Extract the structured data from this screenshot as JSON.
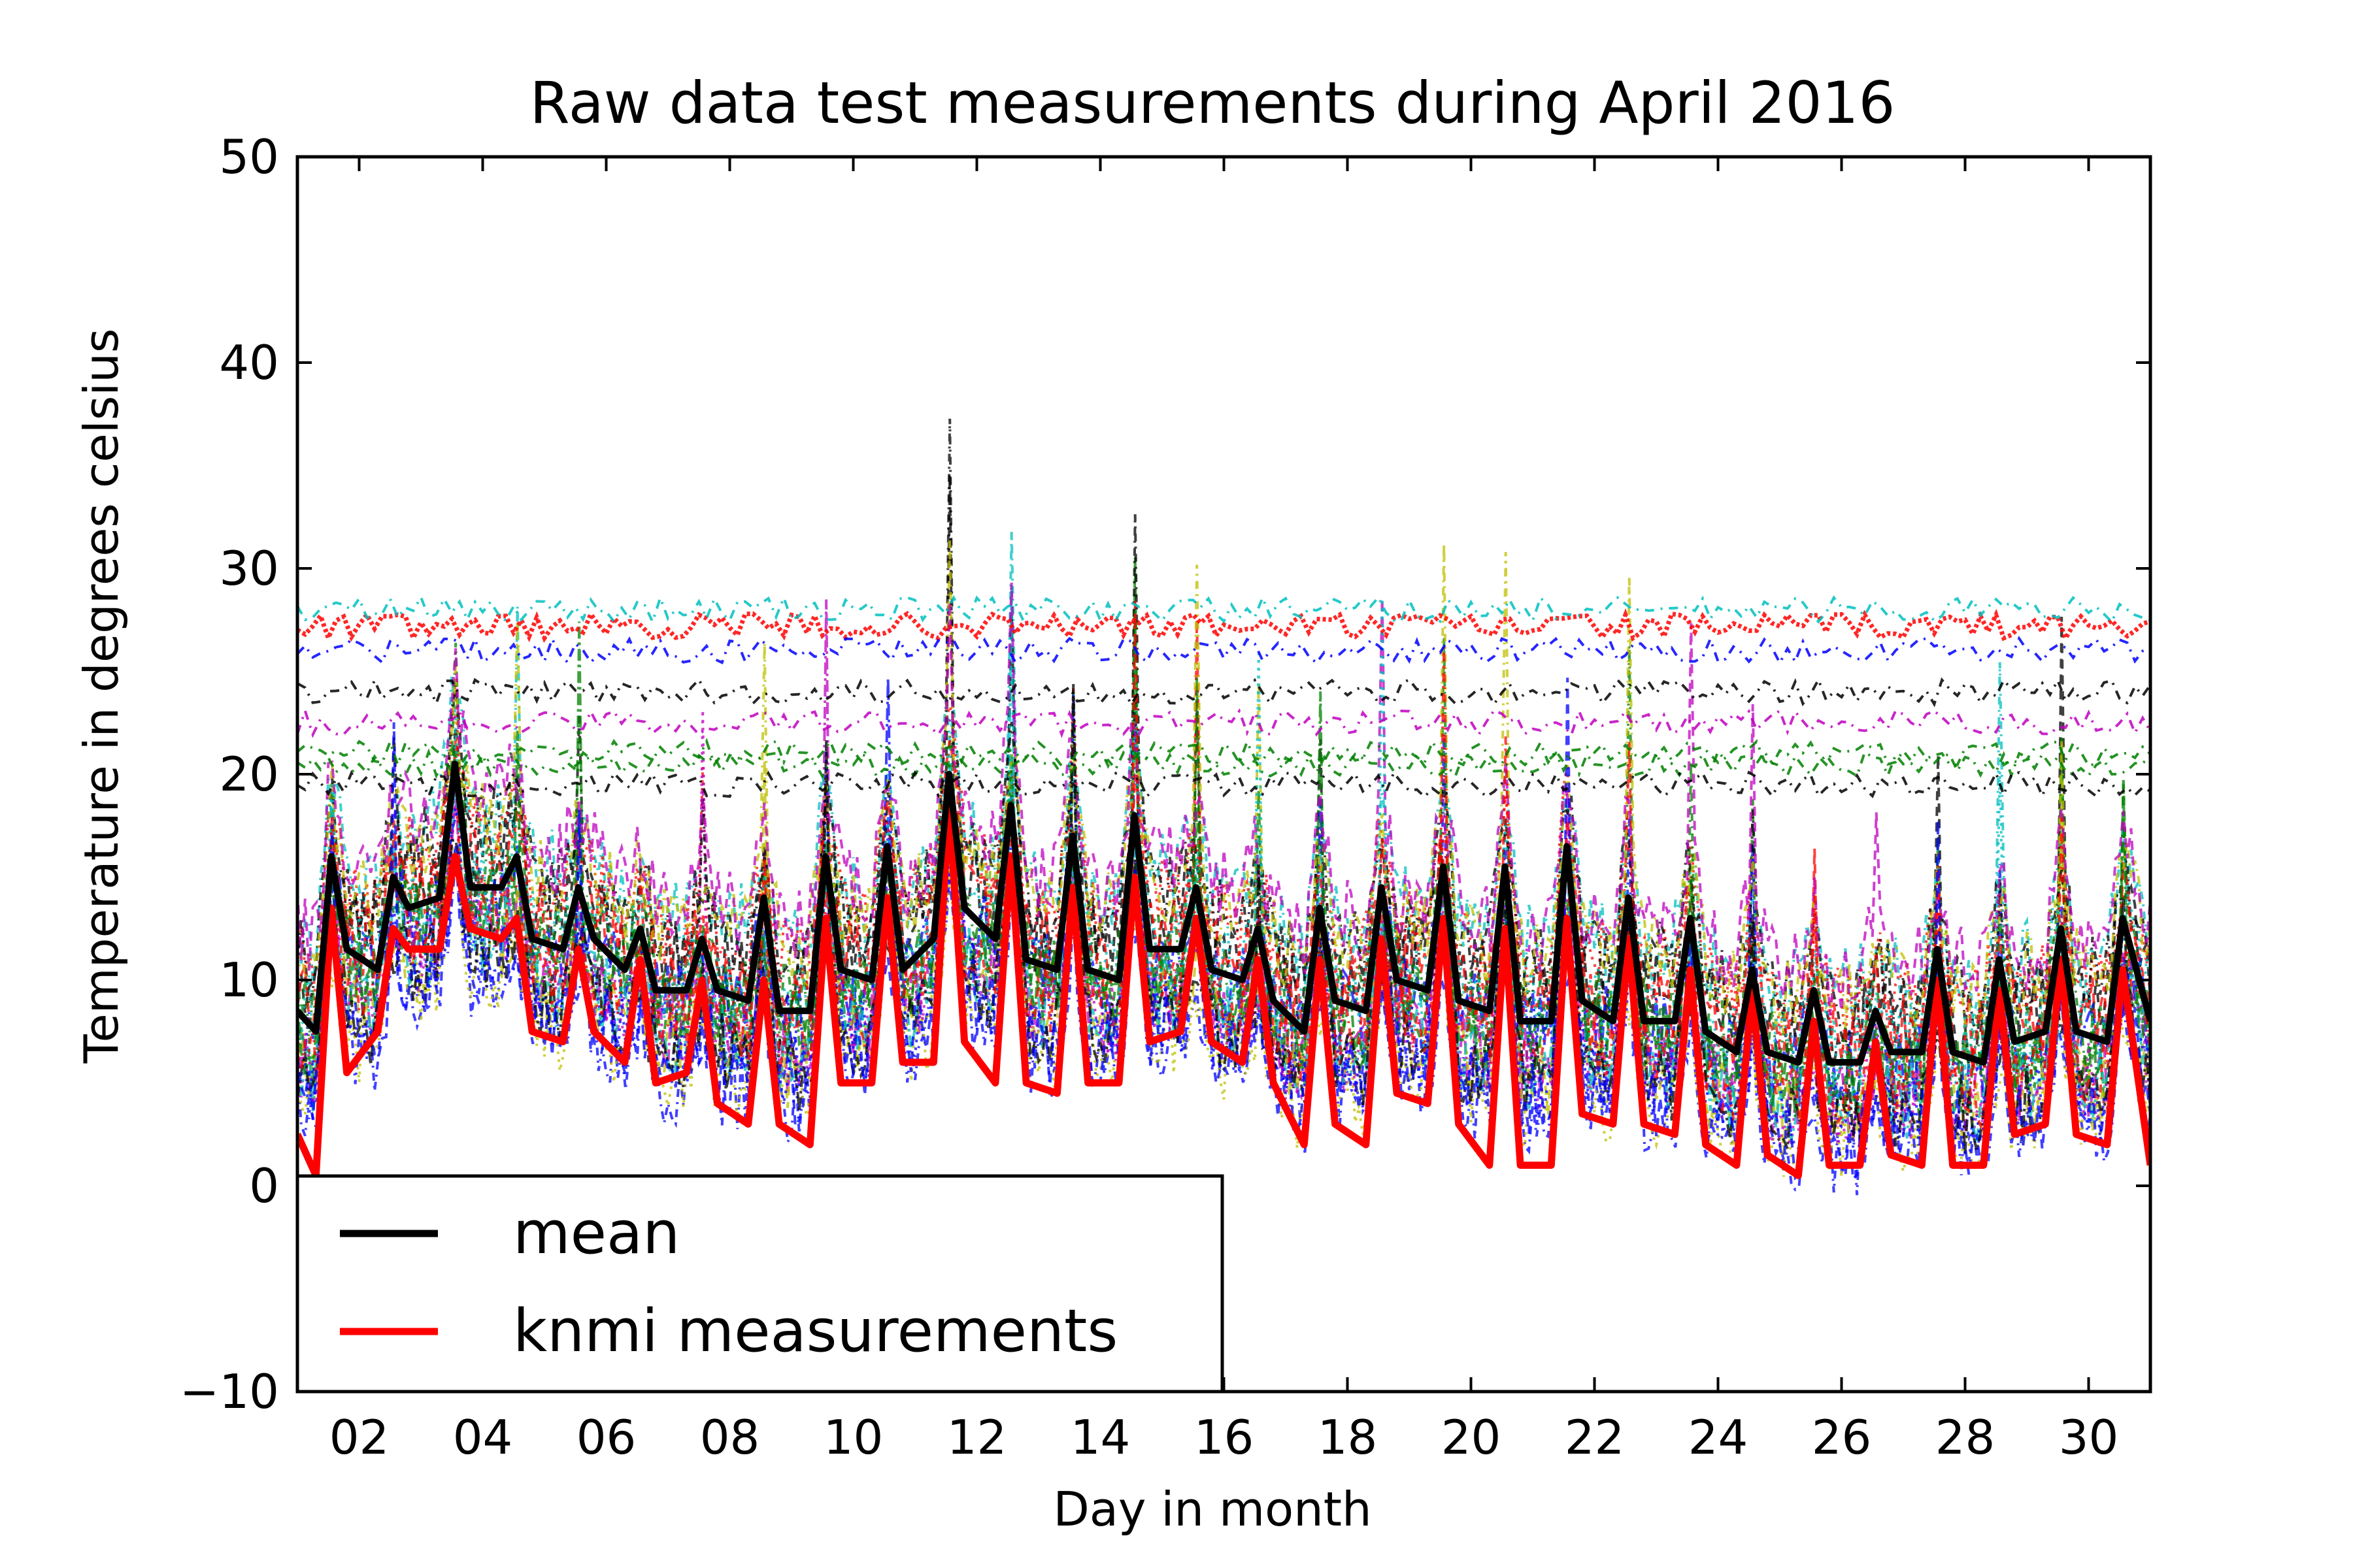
{
  "chart_data": {
    "type": "line",
    "title": "Raw data test measurements during April 2016",
    "xlabel": "Day in month",
    "ylabel": "Temperature in degrees celsius",
    "xlim": [
      1,
      31
    ],
    "ylim": [
      -10,
      50
    ],
    "x_ticks": [
      2,
      4,
      6,
      8,
      10,
      12,
      14,
      16,
      18,
      20,
      22,
      24,
      26,
      28,
      30
    ],
    "x_tick_labels": [
      "02",
      "04",
      "06",
      "08",
      "10",
      "12",
      "14",
      "16",
      "18",
      "20",
      "22",
      "24",
      "26",
      "28",
      "30"
    ],
    "y_ticks": [
      -10,
      0,
      10,
      20,
      30,
      40,
      50
    ],
    "y_tick_labels": [
      "−10",
      "0",
      "10",
      "20",
      "30",
      "40",
      "50"
    ],
    "grid": false,
    "legend": {
      "position": "lower-left"
    },
    "series": [
      {
        "name": "mean",
        "color": "#000000",
        "x": [
          1,
          1.3,
          1.55,
          1.8,
          2.3,
          2.55,
          2.8,
          3.3,
          3.55,
          3.8,
          4.3,
          4.55,
          4.8,
          5.3,
          5.55,
          5.8,
          6.3,
          6.55,
          6.8,
          7.3,
          7.55,
          7.8,
          8.3,
          8.55,
          8.8,
          9.3,
          9.55,
          9.8,
          10.3,
          10.55,
          10.8,
          11.3,
          11.55,
          11.8,
          12.3,
          12.55,
          12.8,
          13.3,
          13.55,
          13.8,
          14.3,
          14.55,
          14.8,
          15.3,
          15.55,
          15.8,
          16.3,
          16.55,
          16.8,
          17.3,
          17.55,
          17.8,
          18.3,
          18.55,
          18.8,
          19.3,
          19.55,
          19.8,
          20.3,
          20.55,
          20.8,
          21.3,
          21.55,
          21.8,
          22.3,
          22.55,
          22.8,
          23.3,
          23.55,
          23.8,
          24.3,
          24.55,
          24.8,
          25.3,
          25.55,
          25.8,
          26.3,
          26.55,
          26.8,
          27.3,
          27.55,
          27.8,
          28.3,
          28.55,
          28.8,
          29.3,
          29.55,
          29.8,
          30.3,
          30.55,
          31
        ],
        "y": [
          8.5,
          7.5,
          16,
          11.5,
          10.5,
          15,
          13.5,
          14,
          20.5,
          14.5,
          14.5,
          16,
          12,
          11.5,
          14.5,
          12,
          10.5,
          12.5,
          9.5,
          9.5,
          12,
          9.5,
          9,
          14,
          8.5,
          8.5,
          16,
          10.5,
          10,
          16.5,
          10.5,
          12,
          20,
          13.5,
          12,
          18.5,
          11,
          10.5,
          17,
          10.5,
          10,
          18,
          11.5,
          11.5,
          14.5,
          10.5,
          10,
          12.5,
          9,
          7.5,
          13.5,
          9,
          8.5,
          14.5,
          10,
          9.5,
          15.5,
          9,
          8.5,
          15.5,
          8,
          8,
          16.5,
          9,
          8,
          14,
          8,
          8,
          13,
          7.5,
          6.5,
          10.5,
          6.5,
          6,
          9.5,
          6,
          6,
          8.5,
          6.5,
          6.5,
          11.5,
          6.5,
          6,
          11,
          7,
          7.5,
          12.5,
          7.5,
          7,
          13,
          8
        ]
      },
      {
        "name": "knmi measurements",
        "color": "#ff0000",
        "x": [
          1,
          1.3,
          1.55,
          1.8,
          2.3,
          2.55,
          2.8,
          3.3,
          3.55,
          3.8,
          4.3,
          4.55,
          4.8,
          5.3,
          5.55,
          5.8,
          6.3,
          6.55,
          6.8,
          7.3,
          7.55,
          7.8,
          8.3,
          8.55,
          8.8,
          9.3,
          9.55,
          9.8,
          10.3,
          10.55,
          10.8,
          11.3,
          11.55,
          11.8,
          12.3,
          12.55,
          12.8,
          13.3,
          13.55,
          13.8,
          14.3,
          14.55,
          14.8,
          15.3,
          15.55,
          15.8,
          16.3,
          16.55,
          16.8,
          17.3,
          17.55,
          17.8,
          18.3,
          18.55,
          18.8,
          19.3,
          19.55,
          19.8,
          20.3,
          20.55,
          20.8,
          21.3,
          21.55,
          21.8,
          22.3,
          22.55,
          22.8,
          23.3,
          23.55,
          23.8,
          24.3,
          24.55,
          24.8,
          25.3,
          25.55,
          25.8,
          26.3,
          26.55,
          26.8,
          27.3,
          27.55,
          27.8,
          28.3,
          28.55,
          28.8,
          29.3,
          29.55,
          29.8,
          30.3,
          30.55,
          31
        ],
        "y": [
          2.5,
          0.5,
          13.5,
          5.5,
          7.5,
          12.5,
          11.5,
          11.5,
          16,
          12.5,
          12,
          13,
          7.5,
          7,
          11.5,
          7.5,
          6,
          11,
          5,
          5.5,
          10,
          4,
          3,
          10,
          3,
          2,
          13,
          5,
          5,
          14,
          6,
          6,
          18.5,
          7,
          5,
          16,
          5,
          4.5,
          14.5,
          5,
          5,
          15,
          7,
          7.5,
          13,
          7,
          6,
          11,
          5,
          2,
          11,
          3,
          2,
          12,
          4.5,
          4,
          13,
          3,
          1,
          12.5,
          1,
          1,
          13,
          3.5,
          3,
          12,
          3,
          2.5,
          10.5,
          2,
          1,
          9.5,
          1.5,
          0.5,
          8,
          1,
          1,
          7,
          1.5,
          1,
          10,
          1,
          1,
          9.5,
          2.5,
          3,
          11,
          2.5,
          2,
          10.5,
          1
        ]
      }
    ]
  }
}
